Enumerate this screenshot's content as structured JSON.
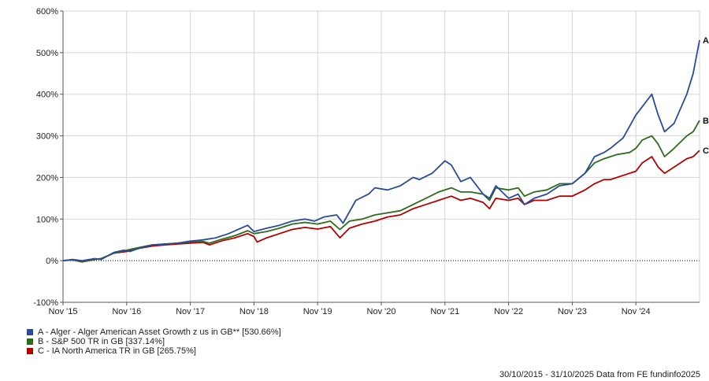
{
  "chart_data": {
    "type": "line",
    "ylim": [
      -100,
      600
    ],
    "yticks": [
      -100,
      0,
      100,
      200,
      300,
      400,
      500,
      600
    ],
    "ytick_labels": [
      "-100%",
      "0%",
      "100%",
      "200%",
      "300%",
      "400%",
      "500%",
      "600%"
    ],
    "xlim": [
      0,
      10
    ],
    "xticks": [
      0,
      1,
      2,
      3,
      4,
      5,
      6,
      7,
      8,
      9
    ],
    "xtick_labels": [
      "Nov '15",
      "Nov '16",
      "Nov '17",
      "Nov '18",
      "Nov '19",
      "Nov '20",
      "Nov '21",
      "Nov '22",
      "Nov '23",
      "Nov '24"
    ],
    "grid": true,
    "x_unit": "years since 30/10/2015",
    "series": [
      {
        "name": "A - Alger - Alger American Asset Growth z us in GB** [530.66%]",
        "end_label": "A",
        "color": "#2a4b9a",
        "points": [
          [
            0,
            0
          ],
          [
            0.15,
            3
          ],
          [
            0.3,
            0
          ],
          [
            0.5,
            5
          ],
          [
            0.6,
            3
          ],
          [
            0.8,
            20
          ],
          [
            0.95,
            25
          ],
          [
            1.05,
            22
          ],
          [
            1.2,
            30
          ],
          [
            1.4,
            38
          ],
          [
            1.6,
            40
          ],
          [
            1.8,
            42
          ],
          [
            2.0,
            47
          ],
          [
            2.2,
            50
          ],
          [
            2.4,
            55
          ],
          [
            2.6,
            65
          ],
          [
            2.9,
            85
          ],
          [
            3.0,
            70
          ],
          [
            3.2,
            78
          ],
          [
            3.4,
            85
          ],
          [
            3.6,
            95
          ],
          [
            3.8,
            100
          ],
          [
            3.95,
            95
          ],
          [
            4.1,
            105
          ],
          [
            4.3,
            110
          ],
          [
            4.4,
            90
          ],
          [
            4.6,
            145
          ],
          [
            4.8,
            160
          ],
          [
            4.9,
            175
          ],
          [
            5.1,
            170
          ],
          [
            5.3,
            180
          ],
          [
            5.5,
            200
          ],
          [
            5.6,
            195
          ],
          [
            5.8,
            210
          ],
          [
            6.0,
            240
          ],
          [
            6.1,
            230
          ],
          [
            6.25,
            190
          ],
          [
            6.4,
            200
          ],
          [
            6.6,
            160
          ],
          [
            6.7,
            150
          ],
          [
            6.8,
            180
          ],
          [
            7.0,
            150
          ],
          [
            7.15,
            160
          ],
          [
            7.25,
            135
          ],
          [
            7.4,
            150
          ],
          [
            7.6,
            160
          ],
          [
            7.8,
            180
          ],
          [
            8.0,
            185
          ],
          [
            8.2,
            210
          ],
          [
            8.35,
            250
          ],
          [
            8.5,
            260
          ],
          [
            8.6,
            270
          ],
          [
            8.8,
            295
          ],
          [
            9.0,
            350
          ],
          [
            9.1,
            370
          ],
          [
            9.25,
            400
          ],
          [
            9.35,
            350
          ],
          [
            9.45,
            310
          ],
          [
            9.6,
            330
          ],
          [
            9.8,
            400
          ],
          [
            9.9,
            450
          ],
          [
            10.0,
            530
          ]
        ]
      },
      {
        "name": "B - S&P 500 TR in GB [337.14%]",
        "end_label": "B",
        "color": "#2e6b1d",
        "points": [
          [
            0,
            0
          ],
          [
            0.15,
            2
          ],
          [
            0.3,
            -2
          ],
          [
            0.5,
            3
          ],
          [
            0.6,
            5
          ],
          [
            0.8,
            18
          ],
          [
            1.0,
            25
          ],
          [
            1.2,
            32
          ],
          [
            1.4,
            38
          ],
          [
            1.6,
            40
          ],
          [
            1.8,
            42
          ],
          [
            2.0,
            45
          ],
          [
            2.2,
            46
          ],
          [
            2.3,
            42
          ],
          [
            2.5,
            52
          ],
          [
            2.7,
            60
          ],
          [
            2.9,
            72
          ],
          [
            3.0,
            65
          ],
          [
            3.2,
            70
          ],
          [
            3.4,
            78
          ],
          [
            3.6,
            88
          ],
          [
            3.8,
            92
          ],
          [
            4.0,
            88
          ],
          [
            4.2,
            95
          ],
          [
            4.35,
            75
          ],
          [
            4.5,
            95
          ],
          [
            4.7,
            100
          ],
          [
            4.9,
            110
          ],
          [
            5.1,
            115
          ],
          [
            5.3,
            120
          ],
          [
            5.5,
            135
          ],
          [
            5.7,
            150
          ],
          [
            5.9,
            165
          ],
          [
            6.1,
            175
          ],
          [
            6.25,
            165
          ],
          [
            6.4,
            165
          ],
          [
            6.6,
            160
          ],
          [
            6.7,
            145
          ],
          [
            6.8,
            175
          ],
          [
            7.0,
            170
          ],
          [
            7.15,
            175
          ],
          [
            7.25,
            155
          ],
          [
            7.4,
            165
          ],
          [
            7.6,
            170
          ],
          [
            7.8,
            185
          ],
          [
            8.0,
            185
          ],
          [
            8.2,
            210
          ],
          [
            8.35,
            235
          ],
          [
            8.5,
            245
          ],
          [
            8.7,
            255
          ],
          [
            8.9,
            260
          ],
          [
            9.0,
            270
          ],
          [
            9.1,
            290
          ],
          [
            9.25,
            300
          ],
          [
            9.35,
            280
          ],
          [
            9.45,
            250
          ],
          [
            9.6,
            270
          ],
          [
            9.8,
            300
          ],
          [
            9.9,
            310
          ],
          [
            10.0,
            337
          ]
        ]
      },
      {
        "name": "C - IA North America TR in GB [265.75%]",
        "end_label": "C",
        "color": "#b30000",
        "points": [
          [
            0,
            0
          ],
          [
            0.15,
            2
          ],
          [
            0.3,
            -3
          ],
          [
            0.5,
            3
          ],
          [
            0.6,
            5
          ],
          [
            0.8,
            18
          ],
          [
            1.0,
            22
          ],
          [
            1.2,
            30
          ],
          [
            1.4,
            35
          ],
          [
            1.6,
            38
          ],
          [
            1.8,
            40
          ],
          [
            2.0,
            42
          ],
          [
            2.2,
            44
          ],
          [
            2.3,
            38
          ],
          [
            2.5,
            48
          ],
          [
            2.7,
            55
          ],
          [
            2.9,
            65
          ],
          [
            3.0,
            58
          ],
          [
            3.05,
            45
          ],
          [
            3.2,
            55
          ],
          [
            3.4,
            65
          ],
          [
            3.6,
            75
          ],
          [
            3.8,
            80
          ],
          [
            4.0,
            76
          ],
          [
            4.2,
            82
          ],
          [
            4.35,
            55
          ],
          [
            4.5,
            78
          ],
          [
            4.7,
            88
          ],
          [
            4.9,
            95
          ],
          [
            5.1,
            105
          ],
          [
            5.3,
            110
          ],
          [
            5.5,
            125
          ],
          [
            5.7,
            135
          ],
          [
            5.9,
            145
          ],
          [
            6.1,
            155
          ],
          [
            6.25,
            145
          ],
          [
            6.4,
            150
          ],
          [
            6.6,
            140
          ],
          [
            6.7,
            125
          ],
          [
            6.8,
            150
          ],
          [
            7.0,
            145
          ],
          [
            7.15,
            150
          ],
          [
            7.25,
            135
          ],
          [
            7.4,
            145
          ],
          [
            7.6,
            145
          ],
          [
            7.8,
            155
          ],
          [
            8.0,
            155
          ],
          [
            8.2,
            170
          ],
          [
            8.35,
            185
          ],
          [
            8.5,
            195
          ],
          [
            8.6,
            195
          ],
          [
            8.8,
            205
          ],
          [
            9.0,
            215
          ],
          [
            9.1,
            235
          ],
          [
            9.25,
            250
          ],
          [
            9.35,
            225
          ],
          [
            9.45,
            210
          ],
          [
            9.6,
            225
          ],
          [
            9.8,
            245
          ],
          [
            9.9,
            250
          ],
          [
            10.0,
            265
          ]
        ]
      }
    ],
    "footer": "30/10/2015 - 31/10/2025 Data from FE fundinfo2025"
  }
}
